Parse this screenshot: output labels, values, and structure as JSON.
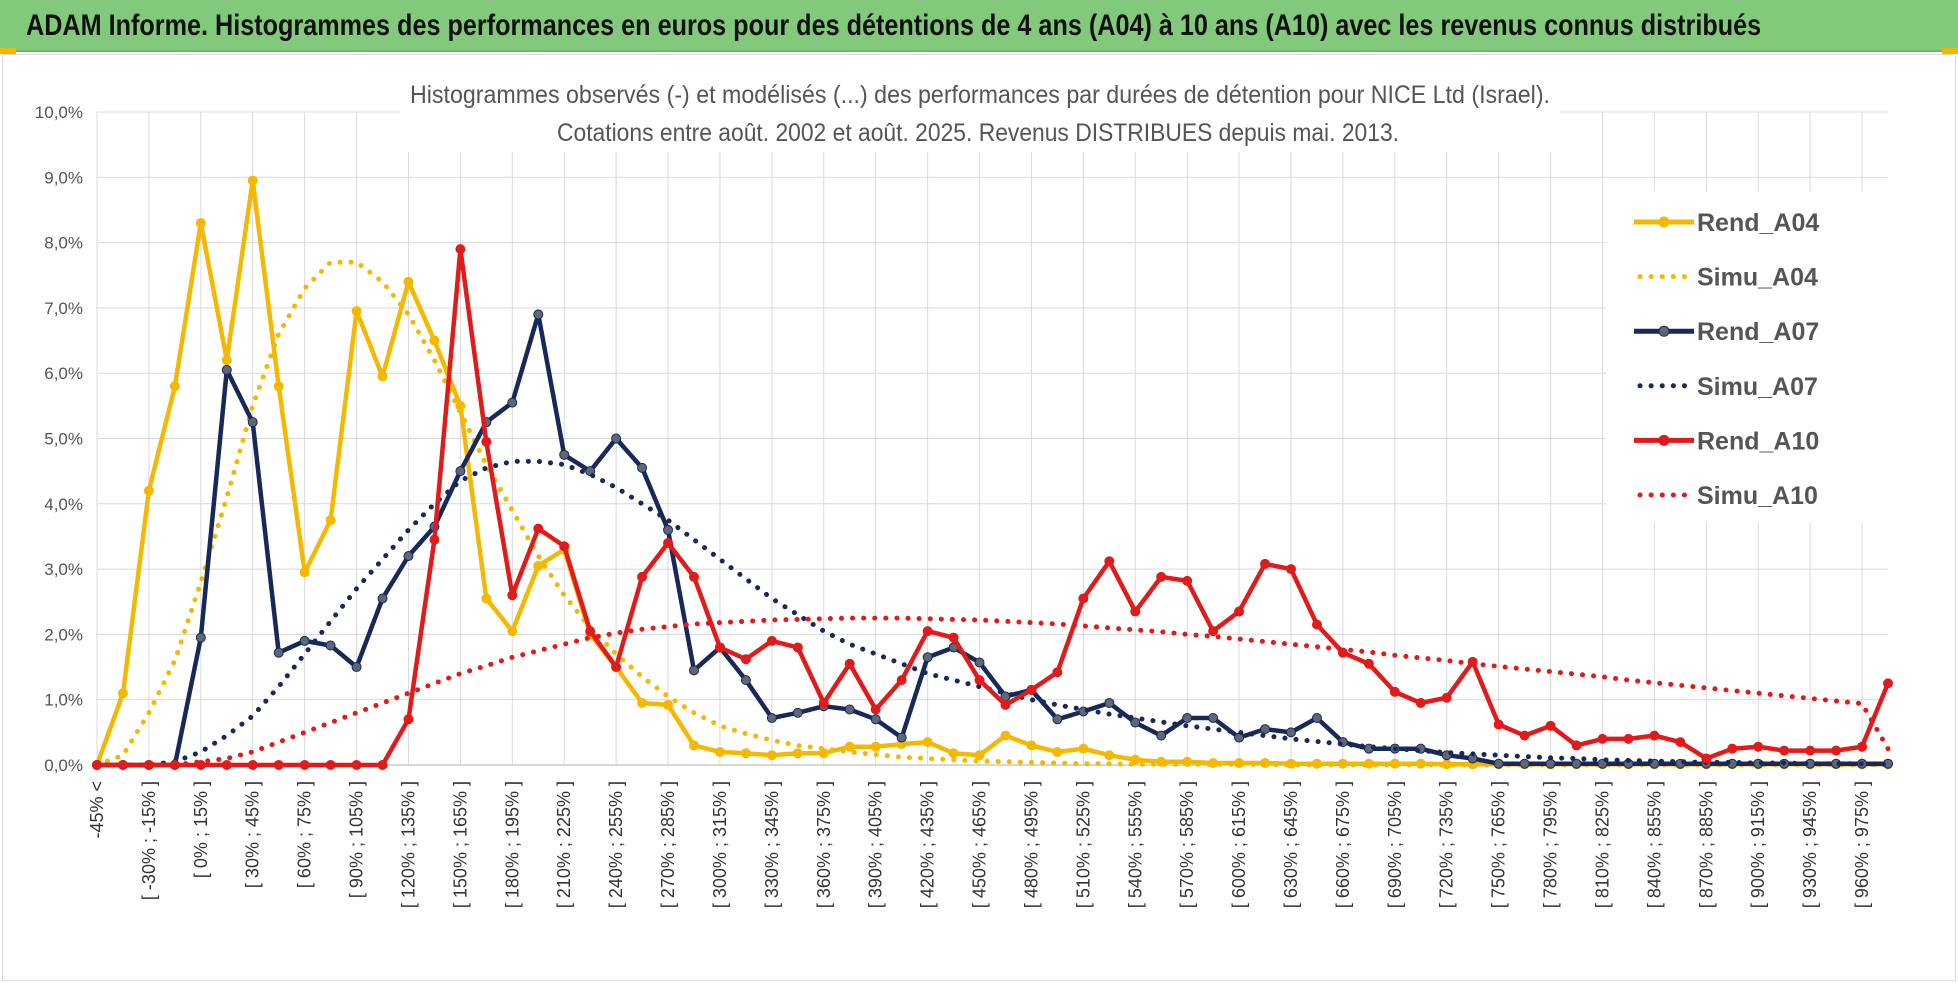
{
  "header": {
    "title": "ADAM Informe. Histogrammes des performances en euros pour des détentions de 4 ans (A04) à 10 ans (A10) avec les revenus connus distribués"
  },
  "chart_data": {
    "type": "line",
    "title": "Histogrammes observés (-) et modélisés (...) des performances par durées de détention pour NICE Ltd (Israel).",
    "subtitle": "Cotations entre août. 2002 et août. 2025.  Revenus DISTRIBUES depuis mai. 2013.",
    "xlabel": "",
    "ylabel": "",
    "ylim": [
      0,
      10
    ],
    "y_ticks": [
      "0,0%",
      "1,0%",
      "2,0%",
      "3,0%",
      "4,0%",
      "5,0%",
      "6,0%",
      "7,0%",
      "8,0%",
      "9,0%",
      "10,0%"
    ],
    "grid": true,
    "legend_position": "right",
    "x_labels": [
      "-45% <",
      "[ -30% ; -15% ]",
      "[ 0% ; 15% ]",
      "[ 30% ; 45% ]",
      "[ 60% ; 75% ]",
      "[ 90% ; 105% ]",
      "[ 120% ; 135% ]",
      "[ 150% ; 165% ]",
      "[ 180% ; 195% ]",
      "[ 210% ; 225% ]",
      "[ 240% ; 255% ]",
      "[ 270% ; 285% ]",
      "[ 300% ; 315% ]",
      "[ 330% ; 345% ]",
      "[ 360% ; 375% ]",
      "[ 390% ; 405% ]",
      "[ 420% ; 435% ]",
      "[ 450% ; 465% ]",
      "[ 480% ; 495% ]",
      "[ 510% ; 525% ]",
      "[ 540% ; 555% ]",
      "[ 570% ; 585% ]",
      "[ 600% ; 615% ]",
      "[ 630% ; 645% ]",
      "[ 660% ; 675% ]",
      "[ 690% ; 705% ]",
      "[ 720% ; 735% ]",
      "[ 750% ; 765% ]",
      "[ 780% ; 795% ]",
      "[ 810% ; 825% ]",
      "[ 840% ; 855% ]",
      "[ 870% ; 885% ]",
      "[ 900% ; 915% ]",
      "[ 930% ; 945% ]",
      "[ 960% ; 975% ]"
    ],
    "num_categories": 70,
    "series": [
      {
        "name": "Rend_A04",
        "style": "solid",
        "color": "#f5b800",
        "values": [
          0,
          1.1,
          4.2,
          5.8,
          8.3,
          6.2,
          8.95,
          5.8,
          2.95,
          3.75,
          6.95,
          5.95,
          7.4,
          6.5,
          5.5,
          2.55,
          2.05,
          3.05,
          3.3,
          2.0,
          1.5,
          0.95,
          0.92,
          0.3,
          0.2,
          0.18,
          0.15,
          0.18,
          0.18,
          0.28,
          0.28,
          0.32,
          0.35,
          0.18,
          0.15,
          0.45,
          0.3,
          0.2,
          0.25,
          0.15,
          0.08,
          0.05,
          0.05,
          0.03,
          0.03,
          0.03,
          0.02,
          0.02,
          0.02,
          0.02,
          0.02,
          0.02,
          0.01,
          0.01,
          0.01,
          0.01,
          0.01,
          0.01,
          0.01,
          0.01,
          0.01,
          0.01,
          0.01,
          0.01,
          0.01,
          0.01,
          0.01,
          0.01,
          0.01,
          0.01
        ]
      },
      {
        "name": "Simu_A04",
        "style": "dotted",
        "color": "#f5b800",
        "values": [
          0,
          0.15,
          0.8,
          1.6,
          2.8,
          4.1,
          5.5,
          6.6,
          7.3,
          7.7,
          7.7,
          7.4,
          6.9,
          6.2,
          5.4,
          4.6,
          3.9,
          3.2,
          2.6,
          2.1,
          1.7,
          1.35,
          1.05,
          0.8,
          0.6,
          0.48,
          0.38,
          0.3,
          0.25,
          0.2,
          0.16,
          0.12,
          0.1,
          0.08,
          0.06,
          0.05,
          0.04,
          0.03,
          0.02,
          0.02,
          0.01,
          0.01,
          0.01,
          0.01,
          0.01,
          0.01,
          0,
          0,
          0,
          0,
          0,
          0,
          0,
          0,
          0,
          0,
          0,
          0,
          0,
          0,
          0,
          0,
          0,
          0,
          0,
          0,
          0,
          0,
          0,
          0
        ]
      },
      {
        "name": "Rend_A07",
        "style": "solid",
        "color": "#17295a",
        "values": [
          0,
          0,
          0,
          0,
          1.95,
          6.05,
          5.25,
          1.72,
          1.9,
          1.83,
          1.5,
          2.55,
          3.2,
          3.65,
          4.5,
          5.25,
          5.55,
          6.9,
          4.75,
          4.5,
          5.0,
          4.55,
          3.6,
          1.45,
          1.8,
          1.3,
          0.72,
          0.8,
          0.9,
          0.85,
          0.7,
          0.42,
          1.65,
          1.8,
          1.57,
          1.05,
          1.15,
          0.7,
          0.82,
          0.95,
          0.65,
          0.45,
          0.72,
          0.72,
          0.42,
          0.55,
          0.5,
          0.72,
          0.35,
          0.25,
          0.25,
          0.25,
          0.15,
          0.1,
          0.02,
          0.02,
          0.02,
          0.02,
          0.02,
          0.02,
          0.02,
          0.02,
          0.02,
          0.02,
          0.02,
          0.02,
          0.02,
          0.02,
          0.02,
          0.02
        ]
      },
      {
        "name": "Simu_A07",
        "style": "dotted",
        "color": "#17295a",
        "values": [
          0,
          0,
          0,
          0.05,
          0.2,
          0.45,
          0.75,
          1.2,
          1.7,
          2.2,
          2.7,
          3.15,
          3.6,
          4.0,
          4.35,
          4.55,
          4.65,
          4.65,
          4.6,
          4.45,
          4.25,
          4.0,
          3.75,
          3.45,
          3.15,
          2.85,
          2.55,
          2.3,
          2.05,
          1.85,
          1.7,
          1.55,
          1.4,
          1.3,
          1.2,
          1.1,
          1.0,
          0.92,
          0.85,
          0.78,
          0.72,
          0.66,
          0.6,
          0.55,
          0.5,
          0.45,
          0.4,
          0.36,
          0.32,
          0.28,
          0.25,
          0.22,
          0.19,
          0.17,
          0.15,
          0.13,
          0.11,
          0.1,
          0.08,
          0.07,
          0.06,
          0.05,
          0.04,
          0.04,
          0.03,
          0.03,
          0.02,
          0.02,
          0.02,
          0.01
        ]
      },
      {
        "name": "Rend_A10",
        "style": "solid",
        "color": "#e11a1a",
        "values": [
          0,
          0,
          0,
          0,
          0,
          0,
          0,
          0,
          0,
          0,
          0,
          0,
          0.7,
          3.45,
          7.9,
          4.95,
          2.6,
          3.62,
          3.35,
          2.05,
          1.5,
          2.88,
          3.4,
          2.88,
          1.8,
          1.62,
          1.9,
          1.8,
          0.95,
          1.55,
          0.85,
          1.3,
          2.05,
          1.95,
          1.3,
          0.92,
          1.15,
          1.42,
          2.55,
          3.12,
          2.35,
          2.88,
          2.82,
          2.05,
          2.35,
          3.08,
          3.0,
          2.15,
          1.72,
          1.55,
          1.12,
          0.95,
          1.03,
          1.58,
          0.62,
          0.45,
          0.6,
          0.3,
          0.4,
          0.4,
          0.45,
          0.35,
          0.1,
          0.25,
          0.28,
          0.22,
          0.22,
          0.22,
          0.28,
          1.25
        ]
      },
      {
        "name": "Simu_A10",
        "style": "dotted",
        "color": "#e11a1a",
        "values": [
          0,
          0,
          0,
          0,
          0.05,
          0.1,
          0.2,
          0.35,
          0.5,
          0.65,
          0.8,
          0.95,
          1.1,
          1.25,
          1.4,
          1.52,
          1.65,
          1.75,
          1.85,
          1.95,
          2.02,
          2.08,
          2.12,
          2.16,
          2.18,
          2.2,
          2.22,
          2.23,
          2.24,
          2.25,
          2.25,
          2.25,
          2.24,
          2.23,
          2.22,
          2.2,
          2.18,
          2.16,
          2.13,
          2.1,
          2.07,
          2.04,
          2.0,
          1.97,
          1.93,
          1.89,
          1.85,
          1.81,
          1.77,
          1.73,
          1.68,
          1.64,
          1.6,
          1.55,
          1.51,
          1.47,
          1.43,
          1.39,
          1.35,
          1.3,
          1.26,
          1.22,
          1.18,
          1.14,
          1.1,
          1.06,
          1.02,
          0.98,
          0.94,
          0.25
        ]
      }
    ]
  }
}
